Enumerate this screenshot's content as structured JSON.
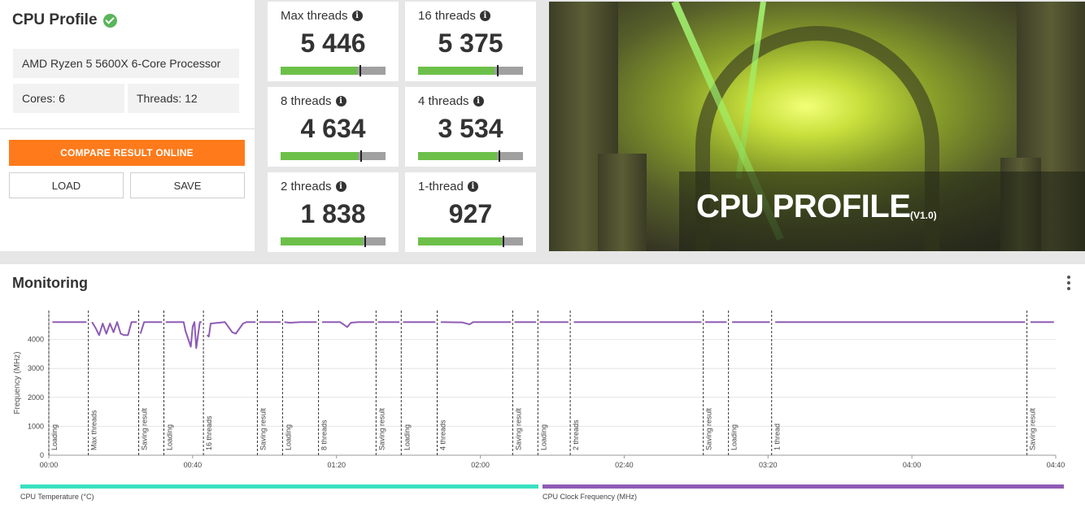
{
  "profile": {
    "title": "CPU Profile",
    "cpu_name": "AMD Ryzen 5 5600X 6-Core Processor",
    "cores": "Cores: 6",
    "threads": "Threads: 12",
    "compare_label": "COMPARE RESULT ONLINE",
    "load_label": "LOAD",
    "save_label": "SAVE"
  },
  "scores": [
    {
      "label": "Max threads",
      "score": "5 446",
      "fill": 0.73,
      "marker": 0.75
    },
    {
      "label": "16 threads",
      "score": "5 375",
      "fill": 0.73,
      "marker": 0.75
    },
    {
      "label": "8 threads",
      "score": "4 634",
      "fill": 0.74,
      "marker": 0.76
    },
    {
      "label": "4 threads",
      "score": "3 534",
      "fill": 0.75,
      "marker": 0.77
    },
    {
      "label": "2 threads",
      "score": "1 838",
      "fill": 0.78,
      "marker": 0.8
    },
    {
      "label": "1-thread",
      "score": "927",
      "fill": 0.8,
      "marker": 0.81
    }
  ],
  "banner": {
    "title": "CPU PROFILE",
    "version": "(V1.0)"
  },
  "monitoring": {
    "title": "Monitoring"
  },
  "colors": {
    "accent_orange": "#ff7a1a",
    "score_green": "#6cc04a",
    "frequency_purple": "#8e5bb5",
    "temperature_teal": "#3ae0c0"
  },
  "chart_data": {
    "type": "line",
    "ylabel": "Frequency (MHz)",
    "ylim": [
      0,
      5000
    ],
    "yticks": [
      0,
      1000,
      2000,
      3000,
      4000
    ],
    "xlim": [
      0,
      280
    ],
    "xticks": [
      {
        "t": 0,
        "label": "00:00"
      },
      {
        "t": 40,
        "label": "00:40"
      },
      {
        "t": 80,
        "label": "01:20"
      },
      {
        "t": 120,
        "label": "02:00"
      },
      {
        "t": 160,
        "label": "02:40"
      },
      {
        "t": 200,
        "label": "03:20"
      },
      {
        "t": 240,
        "label": "04:00"
      },
      {
        "t": 280,
        "label": "04:40"
      }
    ],
    "phases": [
      {
        "t": 0,
        "label": "Loading"
      },
      {
        "t": 11,
        "label": "Max threads"
      },
      {
        "t": 25,
        "label": "Saving result"
      },
      {
        "t": 32,
        "label": "Loading"
      },
      {
        "t": 43,
        "label": "16 threads"
      },
      {
        "t": 58,
        "label": "Saving result"
      },
      {
        "t": 65,
        "label": "Loading"
      },
      {
        "t": 75,
        "label": "8 threads"
      },
      {
        "t": 91,
        "label": "Saving result"
      },
      {
        "t": 98,
        "label": "Loading"
      },
      {
        "t": 108,
        "label": "4 threads"
      },
      {
        "t": 129,
        "label": "Saving result"
      },
      {
        "t": 136,
        "label": "Loading"
      },
      {
        "t": 145,
        "label": "2 threads"
      },
      {
        "t": 182,
        "label": "Saving result"
      },
      {
        "t": 189,
        "label": "Loading"
      },
      {
        "t": 201,
        "label": "1 thread"
      },
      {
        "t": 272,
        "label": "Saving result"
      }
    ],
    "series": [
      {
        "name": "CPU Clock Frequency (MHz)",
        "segments": [
          [
            [
              1,
              4600
            ],
            [
              10.5,
              4600
            ]
          ],
          [
            [
              12,
              4600
            ],
            [
              13,
              4400
            ],
            [
              14,
              4150
            ],
            [
              15,
              4550
            ],
            [
              16,
              4200
            ],
            [
              17,
              4550
            ],
            [
              18,
              4250
            ],
            [
              19,
              4600
            ],
            [
              20,
              4200
            ],
            [
              21,
              4150
            ],
            [
              22,
              4150
            ],
            [
              23,
              4600
            ],
            [
              24.5,
              4600
            ]
          ],
          [
            [
              25.5,
              4200
            ],
            [
              26.5,
              4600
            ],
            [
              31.5,
              4600
            ]
          ],
          [
            [
              32.5,
              4600
            ],
            [
              37.5,
              4600
            ],
            [
              38,
              4300
            ],
            [
              39.5,
              3750
            ],
            [
              40,
              4450
            ],
            [
              40.5,
              4600
            ],
            [
              41,
              3700
            ],
            [
              42,
              4600
            ],
            [
              42.5,
              4600
            ]
          ],
          [
            [
              44,
              4150
            ],
            [
              44.5,
              4100
            ],
            [
              45,
              4550
            ],
            [
              49,
              4600
            ],
            [
              51,
              4250
            ],
            [
              52,
              4200
            ],
            [
              54,
              4550
            ],
            [
              55,
              4600
            ],
            [
              57.5,
              4600
            ]
          ],
          [
            [
              58.5,
              4600
            ],
            [
              64.5,
              4600
            ]
          ],
          [
            [
              65.5,
              4600
            ],
            [
              67,
              4580
            ],
            [
              70,
              4600
            ],
            [
              74.5,
              4600
            ]
          ],
          [
            [
              76,
              4600
            ],
            [
              81,
              4600
            ],
            [
              83,
              4430
            ],
            [
              84,
              4580
            ],
            [
              86,
              4600
            ],
            [
              90.5,
              4600
            ]
          ],
          [
            [
              91.5,
              4600
            ],
            [
              97.5,
              4600
            ]
          ],
          [
            [
              98.5,
              4600
            ],
            [
              107.5,
              4600
            ]
          ],
          [
            [
              109,
              4600
            ],
            [
              115,
              4590
            ],
            [
              117,
              4520
            ],
            [
              118,
              4600
            ],
            [
              123,
              4600
            ],
            [
              128.5,
              4600
            ]
          ],
          [
            [
              129.5,
              4600
            ],
            [
              135.5,
              4600
            ]
          ],
          [
            [
              136.5,
              4600
            ],
            [
              144.5,
              4600
            ]
          ],
          [
            [
              146,
              4600
            ],
            [
              181.5,
              4600
            ]
          ],
          [
            [
              182.5,
              4600
            ],
            [
              188.5,
              4600
            ]
          ],
          [
            [
              190,
              4600
            ],
            [
              200.5,
              4600
            ]
          ],
          [
            [
              202,
              4600
            ],
            [
              271.5,
              4600
            ]
          ],
          [
            [
              273,
              4600
            ],
            [
              279.5,
              4600
            ]
          ]
        ]
      }
    ],
    "legend": [
      {
        "name": "CPU Temperature (°C)",
        "color": "#3ae0c0"
      },
      {
        "name": "CPU Clock Frequency (MHz)",
        "color": "#8e5bb5"
      }
    ]
  }
}
